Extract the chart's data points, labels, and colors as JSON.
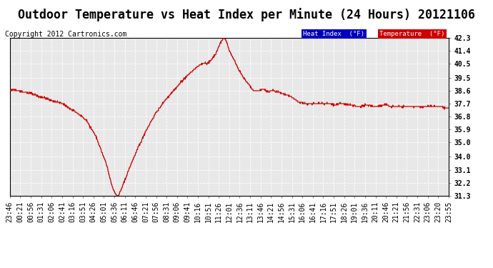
{
  "title": "Outdoor Temperature vs Heat Index per Minute (24 Hours) 20121106",
  "copyright": "Copyright 2012 Cartronics.com",
  "ylim": [
    31.3,
    42.3
  ],
  "yticks": [
    42.3,
    41.4,
    40.5,
    39.5,
    38.6,
    37.7,
    36.8,
    35.9,
    35.0,
    34.0,
    33.1,
    32.2,
    31.3
  ],
  "fig_bg_color": "#ffffff",
  "plot_bg_color": "#e8e8e8",
  "grid_color": "#ffffff",
  "line_color": "#cc0000",
  "legend_heat_bg": "#0000bb",
  "legend_temp_bg": "#cc0000",
  "legend_heat_text": "Heat Index  (°F)",
  "legend_temp_text": "Temperature  (°F)",
  "xtick_labels": [
    "23:46",
    "00:21",
    "00:56",
    "01:31",
    "02:06",
    "02:41",
    "03:16",
    "03:51",
    "04:26",
    "05:01",
    "05:36",
    "06:11",
    "06:46",
    "07:21",
    "07:56",
    "08:31",
    "09:06",
    "09:41",
    "10:16",
    "10:51",
    "11:26",
    "12:01",
    "12:36",
    "13:11",
    "13:46",
    "14:21",
    "14:56",
    "15:31",
    "16:06",
    "16:41",
    "17:16",
    "17:51",
    "18:26",
    "19:01",
    "19:36",
    "20:11",
    "20:46",
    "21:21",
    "21:56",
    "22:31",
    "23:06",
    "23:20",
    "23:55"
  ],
  "title_fontsize": 12,
  "tick_fontsize": 7,
  "copyright_fontsize": 7,
  "keypoints": [
    [
      0.0,
      38.6
    ],
    [
      0.01,
      38.7
    ],
    [
      0.02,
      38.6
    ],
    [
      0.035,
      38.5
    ],
    [
      0.05,
      38.4
    ],
    [
      0.065,
      38.2
    ],
    [
      0.08,
      38.1
    ],
    [
      0.095,
      37.9
    ],
    [
      0.11,
      37.8
    ],
    [
      0.125,
      37.6
    ],
    [
      0.14,
      37.3
    ],
    [
      0.155,
      37.0
    ],
    [
      0.165,
      36.8
    ],
    [
      0.175,
      36.5
    ],
    [
      0.185,
      36.0
    ],
    [
      0.195,
      35.5
    ],
    [
      0.205,
      34.7
    ],
    [
      0.215,
      33.9
    ],
    [
      0.222,
      33.3
    ],
    [
      0.228,
      32.5
    ],
    [
      0.235,
      31.8
    ],
    [
      0.24,
      31.5
    ],
    [
      0.244,
      31.3
    ],
    [
      0.248,
      31.35
    ],
    [
      0.252,
      31.6
    ],
    [
      0.26,
      32.2
    ],
    [
      0.27,
      33.0
    ],
    [
      0.28,
      33.8
    ],
    [
      0.295,
      34.8
    ],
    [
      0.31,
      35.8
    ],
    [
      0.33,
      36.9
    ],
    [
      0.35,
      37.8
    ],
    [
      0.37,
      38.5
    ],
    [
      0.39,
      39.2
    ],
    [
      0.41,
      39.8
    ],
    [
      0.425,
      40.2
    ],
    [
      0.438,
      40.5
    ],
    [
      0.445,
      40.5
    ],
    [
      0.452,
      40.5
    ],
    [
      0.46,
      40.8
    ],
    [
      0.47,
      41.2
    ],
    [
      0.478,
      41.8
    ],
    [
      0.483,
      42.1
    ],
    [
      0.487,
      42.3
    ],
    [
      0.491,
      42.2
    ],
    [
      0.495,
      41.9
    ],
    [
      0.5,
      41.4
    ],
    [
      0.51,
      40.8
    ],
    [
      0.52,
      40.2
    ],
    [
      0.53,
      39.6
    ],
    [
      0.54,
      39.2
    ],
    [
      0.548,
      38.9
    ],
    [
      0.555,
      38.6
    ],
    [
      0.56,
      38.6
    ],
    [
      0.57,
      38.6
    ],
    [
      0.575,
      38.7
    ],
    [
      0.58,
      38.7
    ],
    [
      0.583,
      38.6
    ],
    [
      0.59,
      38.5
    ],
    [
      0.595,
      38.6
    ],
    [
      0.6,
      38.6
    ],
    [
      0.61,
      38.5
    ],
    [
      0.62,
      38.4
    ],
    [
      0.63,
      38.3
    ],
    [
      0.64,
      38.2
    ],
    [
      0.65,
      38.0
    ],
    [
      0.66,
      37.8
    ],
    [
      0.67,
      37.7
    ],
    [
      0.68,
      37.7
    ],
    [
      0.69,
      37.7
    ],
    [
      0.7,
      37.7
    ],
    [
      0.71,
      37.7
    ],
    [
      0.72,
      37.7
    ],
    [
      0.73,
      37.7
    ],
    [
      0.74,
      37.6
    ],
    [
      0.75,
      37.7
    ],
    [
      0.76,
      37.7
    ],
    [
      0.77,
      37.6
    ],
    [
      0.78,
      37.6
    ],
    [
      0.79,
      37.5
    ],
    [
      0.8,
      37.5
    ],
    [
      0.81,
      37.6
    ],
    [
      0.82,
      37.6
    ],
    [
      0.83,
      37.5
    ],
    [
      0.84,
      37.5
    ],
    [
      0.85,
      37.6
    ],
    [
      0.86,
      37.6
    ],
    [
      0.87,
      37.5
    ],
    [
      0.88,
      37.5
    ],
    [
      0.89,
      37.5
    ],
    [
      0.9,
      37.5
    ],
    [
      0.91,
      37.5
    ],
    [
      0.92,
      37.5
    ],
    [
      0.93,
      37.5
    ],
    [
      0.94,
      37.5
    ],
    [
      0.95,
      37.5
    ],
    [
      0.96,
      37.5
    ],
    [
      0.97,
      37.5
    ],
    [
      0.98,
      37.5
    ],
    [
      0.99,
      37.4
    ],
    [
      1.0,
      37.4
    ]
  ]
}
